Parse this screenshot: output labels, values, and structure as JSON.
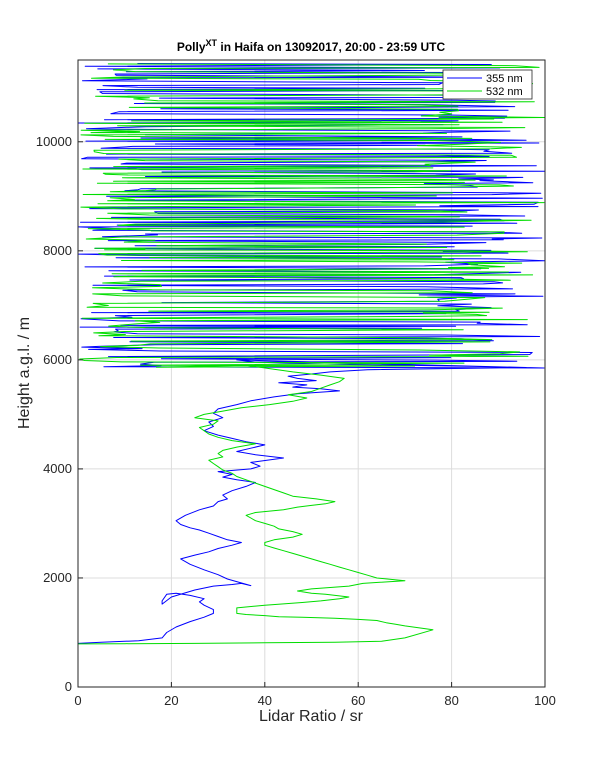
{
  "chart_data": {
    "type": "line",
    "title": {
      "prefix": "Polly",
      "superscript": "XT",
      "suffix": " in Haifa on 13092017, 20:00 - 23:59 UTC"
    },
    "xlabel": "Lidar Ratio / sr",
    "ylabel": "Height a.g.l. / m",
    "xlim": [
      0,
      100
    ],
    "ylim": [
      0,
      11500
    ],
    "xticks": [
      0,
      20,
      40,
      60,
      80,
      100
    ],
    "yticks": [
      0,
      2000,
      4000,
      6000,
      8000,
      10000
    ],
    "grid": true,
    "legend_position": "top-right",
    "series": [
      {
        "name": "355 nm",
        "color": "#0000ff",
        "x": [
          0,
          5,
          13,
          18,
          19,
          21,
          24,
          27,
          29,
          29,
          27,
          26,
          27,
          24,
          21,
          19,
          18,
          18,
          20,
          25,
          29,
          33,
          35,
          37,
          32,
          30,
          27,
          24,
          22,
          25,
          28,
          30,
          33,
          35,
          32,
          30,
          28,
          26,
          24,
          22,
          21,
          23,
          26,
          29,
          30,
          32,
          31,
          33,
          36,
          38,
          34,
          31,
          33,
          30,
          37,
          39,
          37,
          44,
          38,
          34,
          37,
          40,
          36,
          33,
          30,
          27,
          29,
          28,
          31,
          29,
          30,
          34,
          37,
          42,
          47,
          56,
          52,
          46,
          49,
          43,
          51,
          47,
          45,
          50,
          54,
          62,
          96,
          85,
          70,
          55,
          45,
          38,
          34
        ],
        "y": [
          800,
          820,
          850,
          900,
          1000,
          1100,
          1200,
          1280,
          1350,
          1420,
          1500,
          1560,
          1620,
          1680,
          1720,
          1700,
          1580,
          1520,
          1650,
          1780,
          1850,
          1880,
          1900,
          1860,
          1980,
          2060,
          2150,
          2250,
          2350,
          2420,
          2480,
          2540,
          2600,
          2650,
          2700,
          2760,
          2820,
          2880,
          2920,
          2980,
          3050,
          3150,
          3250,
          3320,
          3400,
          3450,
          3520,
          3600,
          3680,
          3750,
          3800,
          3850,
          3900,
          3950,
          4000,
          4050,
          4120,
          4200,
          4260,
          4320,
          4380,
          4440,
          4500,
          4560,
          4620,
          4700,
          4780,
          4860,
          4940,
          5020,
          5100,
          5180,
          5250,
          5320,
          5380,
          5430,
          5470,
          5500,
          5540,
          5580,
          5620,
          5660,
          5700,
          5740,
          5780,
          5820,
          5860,
          5880,
          5900,
          5920,
          5940,
          5960,
          6000
        ]
      },
      {
        "name": "532 nm",
        "color": "#00dd00",
        "x": [
          0,
          10,
          25,
          40,
          55,
          65,
          70,
          76,
          70,
          68,
          66,
          64,
          60,
          55,
          48,
          43,
          40,
          36,
          34,
          34,
          40,
          48,
          52,
          56,
          58,
          53,
          50,
          47,
          50,
          58,
          61,
          70,
          64,
          62,
          60,
          58,
          56,
          54,
          52,
          50,
          48,
          46,
          44,
          42,
          40,
          40,
          42,
          46,
          48,
          46,
          43,
          42,
          40,
          38,
          37,
          36,
          38,
          44,
          47,
          50,
          53,
          55,
          51,
          46,
          44,
          42,
          40,
          38,
          36,
          34,
          33,
          31,
          30,
          29,
          28,
          31,
          30,
          31,
          34,
          38,
          33,
          30,
          28,
          27,
          26,
          29,
          30,
          25,
          27,
          31,
          35,
          41,
          46,
          49,
          45,
          50,
          52,
          54,
          56,
          57,
          52,
          46,
          41,
          36
        ],
        "y": [
          790,
          795,
          800,
          810,
          820,
          840,
          900,
          1050,
          1120,
          1150,
          1180,
          1220,
          1240,
          1260,
          1280,
          1290,
          1310,
          1330,
          1350,
          1450,
          1500,
          1550,
          1580,
          1620,
          1650,
          1700,
          1720,
          1760,
          1800,
          1850,
          1900,
          1950,
          2000,
          2050,
          2100,
          2150,
          2200,
          2250,
          2300,
          2350,
          2400,
          2450,
          2500,
          2550,
          2600,
          2650,
          2700,
          2750,
          2800,
          2850,
          2900,
          2950,
          3000,
          3050,
          3100,
          3150,
          3200,
          3250,
          3300,
          3330,
          3360,
          3400,
          3450,
          3500,
          3560,
          3620,
          3680,
          3740,
          3800,
          3860,
          3920,
          3980,
          4040,
          4100,
          4160,
          4220,
          4280,
          4340,
          4400,
          4460,
          4520,
          4580,
          4640,
          4700,
          4760,
          4820,
          4880,
          4940,
          5000,
          5060,
          5120,
          5180,
          5240,
          5300,
          5360,
          5420,
          5480,
          5540,
          5600,
          5660,
          5720,
          5780,
          5840,
          5900
        ]
      }
    ],
    "noisy_region": {
      "y_from": 5850,
      "y_to": 11450,
      "x_max": 100
    }
  }
}
